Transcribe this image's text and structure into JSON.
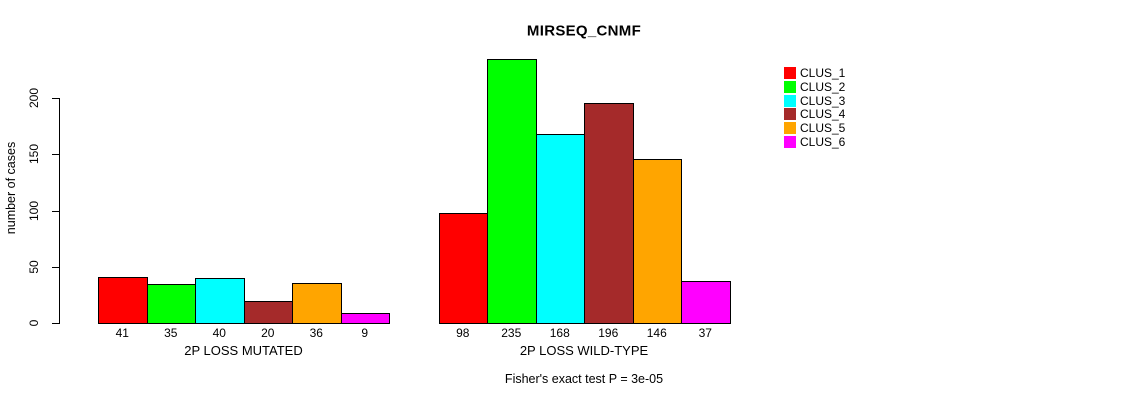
{
  "chart_data": {
    "type": "bar",
    "title": "MIRSEQ_CNMF",
    "ylabel": "number of cases",
    "xlabel": "",
    "y_ticks": [
      0,
      50,
      100,
      150,
      200
    ],
    "ylim": [
      0,
      240
    ],
    "grid": false,
    "legend_position": "right",
    "categories": [
      "2P LOSS MUTATED",
      "2P LOSS WILD-TYPE"
    ],
    "series": [
      {
        "name": "CLUS_1",
        "color": "#FF0000",
        "values": [
          41,
          98
        ]
      },
      {
        "name": "CLUS_2",
        "color": "#00FF00",
        "values": [
          35,
          235
        ]
      },
      {
        "name": "CLUS_3",
        "color": "#00FFFF",
        "values": [
          40,
          168
        ]
      },
      {
        "name": "CLUS_4",
        "color": "#A52A2A",
        "values": [
          20,
          196
        ]
      },
      {
        "name": "CLUS_5",
        "color": "#FFA500",
        "values": [
          36,
          146
        ]
      },
      {
        "name": "CLUS_6",
        "color": "#FF00FF",
        "values": [
          9,
          37
        ]
      }
    ],
    "bar_value_labels": {
      "2P LOSS MUTATED": [
        41,
        35,
        40,
        20,
        36,
        9
      ],
      "2P LOSS WILD-TYPE": [
        98,
        235,
        168,
        196,
        146,
        37
      ]
    },
    "footnote": "Fisher's exact test P = 3e-05"
  }
}
